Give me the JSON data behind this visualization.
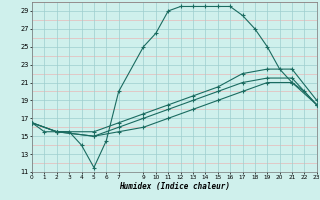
{
  "xlabel": "Humidex (Indice chaleur)",
  "bg_color": "#cff0ec",
  "grid_color_teal": "#9ecece",
  "grid_color_pink": "#e8b8b8",
  "line_color": "#1a6b60",
  "xlim": [
    0,
    23
  ],
  "ylim": [
    11,
    30
  ],
  "yticks": [
    11,
    13,
    15,
    17,
    19,
    21,
    23,
    25,
    27,
    29
  ],
  "xticks": [
    0,
    1,
    2,
    3,
    4,
    5,
    6,
    7,
    9,
    10,
    11,
    12,
    13,
    14,
    15,
    16,
    17,
    18,
    19,
    20,
    21,
    22,
    23
  ],
  "curve_main_x": [
    0,
    1,
    2,
    3,
    4,
    5,
    6,
    7,
    9,
    10,
    11,
    12,
    13,
    14,
    15,
    16,
    17,
    18,
    19,
    20,
    21,
    22,
    23
  ],
  "curve_main_y": [
    16.5,
    15.5,
    15.5,
    15.5,
    14.0,
    11.5,
    14.5,
    20.0,
    25.0,
    26.5,
    29.0,
    29.5,
    29.5,
    29.5,
    29.5,
    29.5,
    28.5,
    27.0,
    25.0,
    22.5,
    21.0,
    20.0,
    18.5
  ],
  "curve_a_x": [
    0,
    2,
    5,
    7,
    9,
    11,
    13,
    15,
    17,
    19,
    21,
    23
  ],
  "curve_a_y": [
    16.5,
    15.5,
    15.5,
    16.5,
    17.5,
    18.5,
    19.5,
    20.5,
    22.0,
    22.5,
    22.5,
    19.0
  ],
  "curve_b_x": [
    0,
    2,
    5,
    7,
    9,
    11,
    13,
    15,
    17,
    19,
    21,
    23
  ],
  "curve_b_y": [
    16.5,
    15.5,
    15.0,
    16.0,
    17.0,
    18.0,
    19.0,
    20.0,
    21.0,
    21.5,
    21.5,
    18.5
  ],
  "curve_c_x": [
    0,
    2,
    5,
    7,
    9,
    11,
    13,
    15,
    17,
    19,
    21,
    23
  ],
  "curve_c_y": [
    16.5,
    15.5,
    15.0,
    15.5,
    16.0,
    17.0,
    18.0,
    19.0,
    20.0,
    21.0,
    21.0,
    18.5
  ]
}
